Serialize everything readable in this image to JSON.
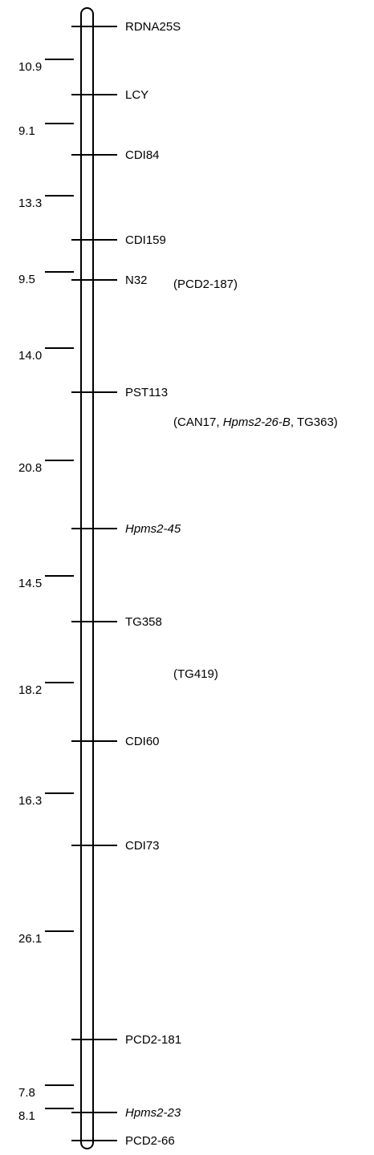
{
  "linkage_map": {
    "markers": [
      {
        "name": "RDNA25S",
        "italic": false
      },
      {
        "name": "LCY",
        "italic": false
      },
      {
        "name": "CDI84",
        "italic": false
      },
      {
        "name": "CDI159",
        "italic": false
      },
      {
        "name": "N32",
        "italic": false
      },
      {
        "name": "PST113",
        "italic": false
      },
      {
        "name": "Hpms2-45",
        "italic": true
      },
      {
        "name": "TG358",
        "italic": false
      },
      {
        "name": "CDI60",
        "italic": false
      },
      {
        "name": "CDI73",
        "italic": false
      },
      {
        "name": "PCD2-181",
        "italic": false
      },
      {
        "name": "Hpms2-23",
        "italic": true
      },
      {
        "name": "PCD2-66",
        "italic": false
      }
    ],
    "intervals": [
      "10.9",
      "9.1",
      "13.3",
      "9.5",
      "14.0",
      "20.8",
      "14.5",
      "18.2",
      "16.3",
      "26.1",
      "7.8",
      "8.1"
    ],
    "unplaced_groups": [
      {
        "parts": [
          {
            "text": "(PCD2-187)",
            "italic": false
          }
        ]
      },
      {
        "parts": [
          {
            "text": "(CAN17, ",
            "italic": false
          },
          {
            "text": "Hpms2-26-B",
            "italic": true
          },
          {
            "text": ", TG363)",
            "italic": false
          }
        ]
      },
      {
        "parts": [
          {
            "text": "(TG419)",
            "italic": false
          }
        ]
      }
    ]
  }
}
